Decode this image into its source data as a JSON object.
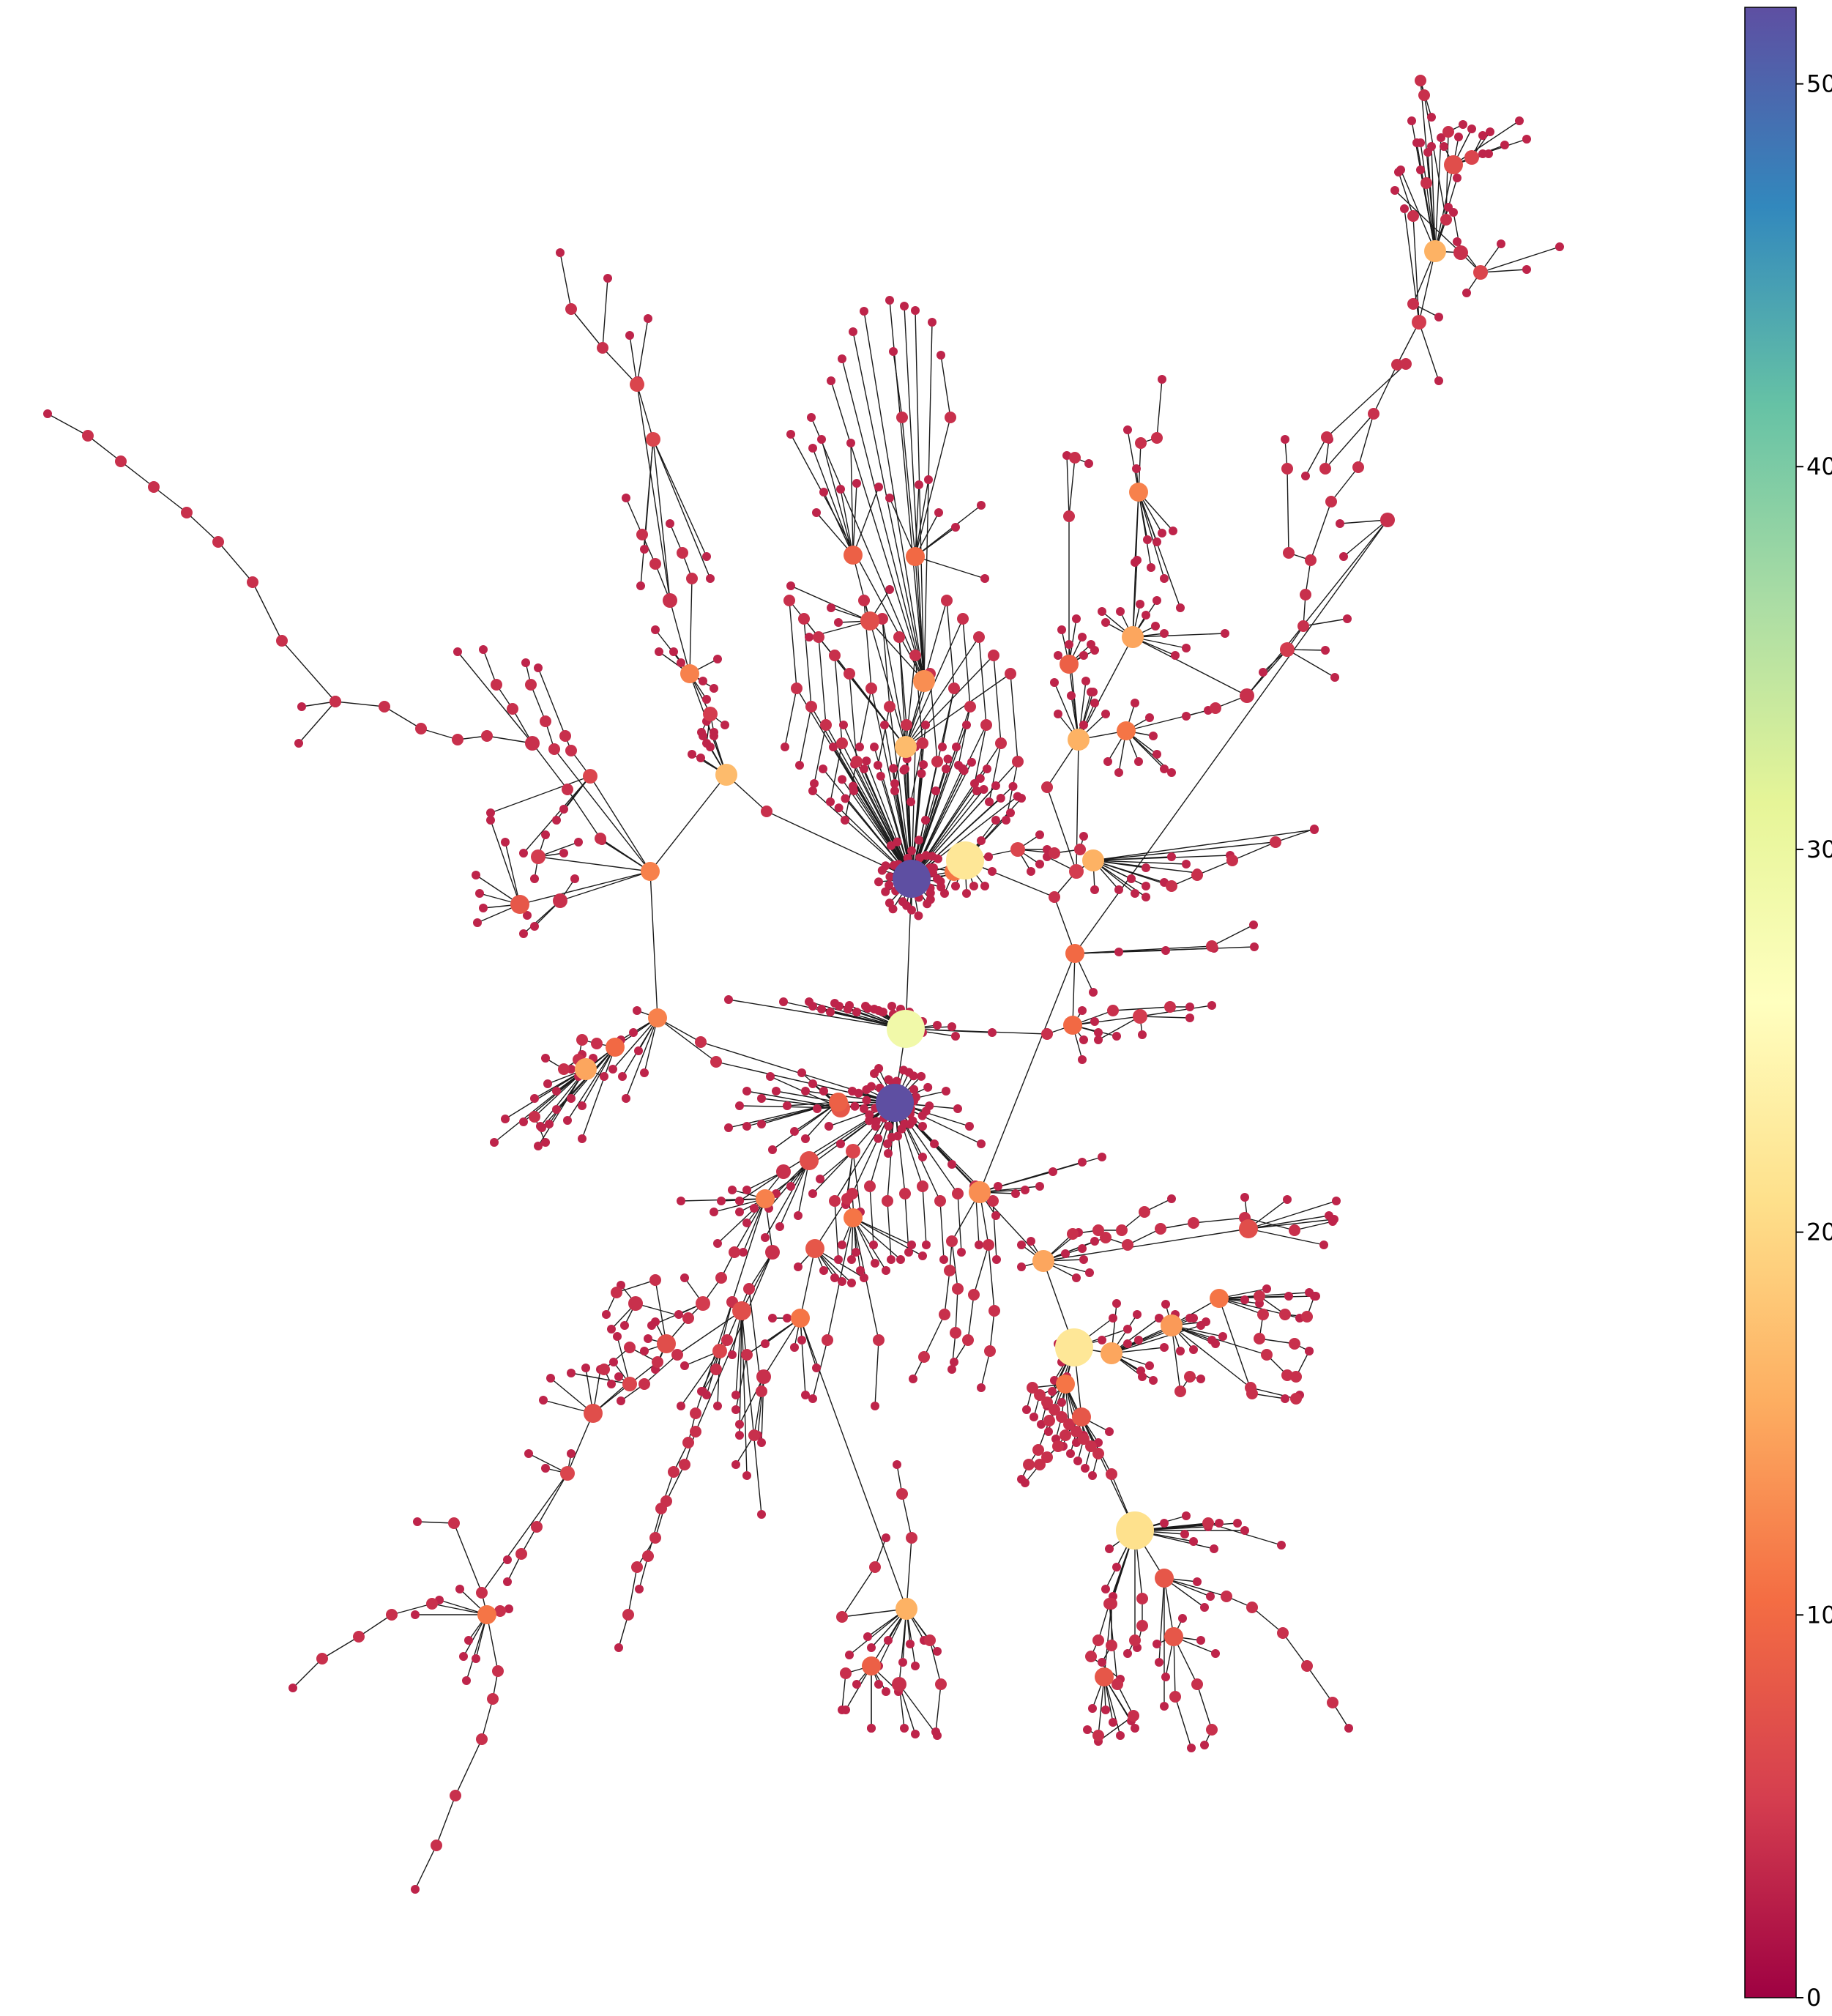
{
  "colorbar": {
    "min": 0,
    "max": 52,
    "ticks": [
      "0",
      "10",
      "20",
      "30",
      "40",
      "50"
    ],
    "tick_values": [
      0,
      10,
      20,
      30,
      40,
      50
    ],
    "colormap": "Spectral",
    "colormap_stops": [
      "#9e0142",
      "#d53e4f",
      "#f46d43",
      "#fdae61",
      "#fee08b",
      "#ffffbf",
      "#e6f598",
      "#abdda4",
      "#66c2a5",
      "#3288bd",
      "#5e4fa2"
    ]
  },
  "graph": {
    "edge_color": "#1a1a1a",
    "node_color_attribute": "degree"
  }
}
